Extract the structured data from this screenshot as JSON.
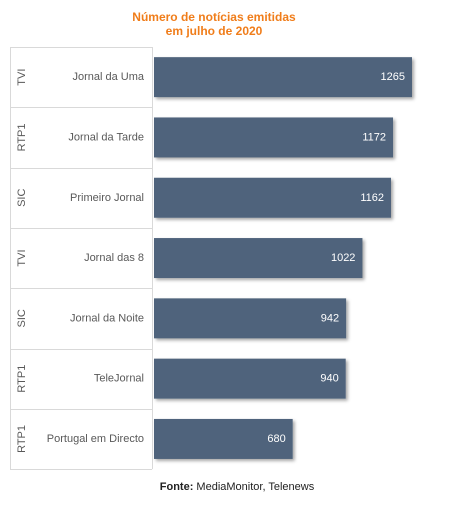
{
  "chart_data": {
    "type": "bar",
    "orientation": "horizontal",
    "title_lines": [
      "Número de notícias emitidas",
      "em julho de 2020"
    ],
    "groups": [
      "TVI",
      "RTP1",
      "SIC",
      "TVI",
      "SIC",
      "RTP1",
      "RTP1"
    ],
    "categories": [
      "Jornal da Uma",
      "Jornal da Tarde",
      "Primeiro Jornal",
      "Jornal das 8",
      "Jornal da Noite",
      "TeleJornal",
      "Portugal em Directo"
    ],
    "values": [
      1265,
      1172,
      1162,
      1022,
      942,
      940,
      680
    ],
    "xlim": [
      0,
      1400
    ],
    "data_labels": true,
    "grid": false,
    "legend": "none"
  },
  "colors": {
    "bar": "#4f637b",
    "title": "#f07d1a",
    "label_text": "#595959",
    "divider": "#d9d9d9"
  },
  "source": {
    "label": "Fonte:",
    "text": "MediaMonitor, Telenews"
  }
}
